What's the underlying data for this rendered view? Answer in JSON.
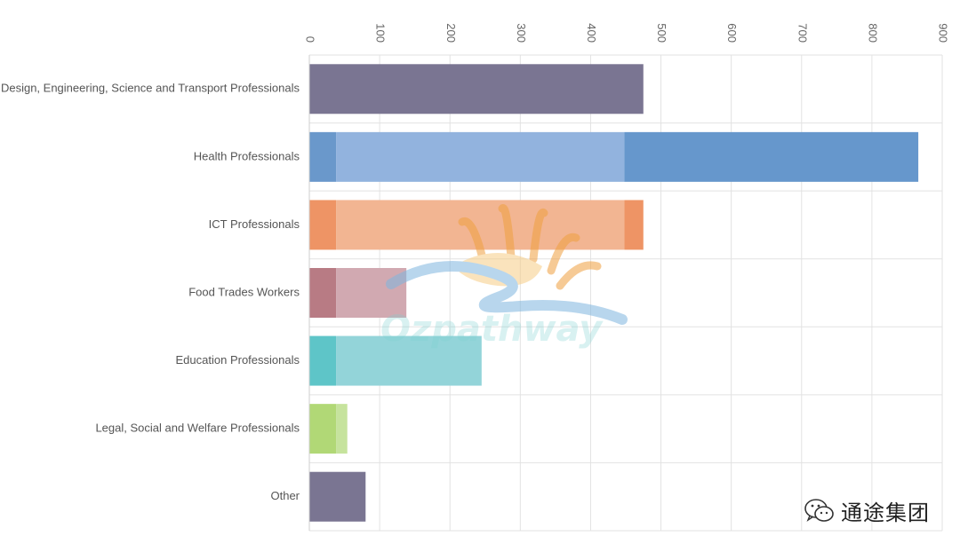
{
  "chart_data": {
    "type": "bar",
    "orientation": "horizontal",
    "stacked": true,
    "categories": [
      "Design, Engineering, Science and Transport Professionals",
      "Health Professionals",
      "ICT Professionals",
      "Food Trades Workers",
      "Education Professionals",
      "Legal, Social and Welfare Professionals",
      "Other"
    ],
    "bars": [
      {
        "segments": [
          {
            "value": 475,
            "color": "#7a7592"
          }
        ]
      },
      {
        "segments": [
          {
            "value": 38,
            "color": "#6a98cb"
          },
          {
            "value": 410,
            "color": "#92b3de"
          },
          {
            "value": 418,
            "color": "#6697cc"
          }
        ]
      },
      {
        "segments": [
          {
            "value": 38,
            "color": "#ee9465"
          },
          {
            "value": 410,
            "color": "#f2b592"
          },
          {
            "value": 27,
            "color": "#ee9465"
          }
        ]
      },
      {
        "segments": [
          {
            "value": 38,
            "color": "#b87b84"
          },
          {
            "value": 100,
            "color": "#d1a9b1"
          }
        ]
      },
      {
        "segments": [
          {
            "value": 38,
            "color": "#5ec5c8"
          },
          {
            "value": 207,
            "color": "#93d4d9"
          }
        ]
      },
      {
        "segments": [
          {
            "value": 38,
            "color": "#b1d876"
          },
          {
            "value": 16,
            "color": "#c6e39d"
          }
        ]
      },
      {
        "segments": [
          {
            "value": 80,
            "color": "#7a7592"
          }
        ]
      }
    ],
    "xlim": [
      0,
      900
    ],
    "xticks": [
      0,
      100,
      200,
      300,
      400,
      500,
      600,
      700,
      800,
      900
    ],
    "xaxis_position": "top",
    "tick_label_rotation": "vertical",
    "grid": true,
    "legend": "none"
  },
  "watermark": {
    "text": "Ozpathway",
    "kind": "logo"
  },
  "brand": {
    "label": "通途集团",
    "icon": "wechat-icon"
  }
}
